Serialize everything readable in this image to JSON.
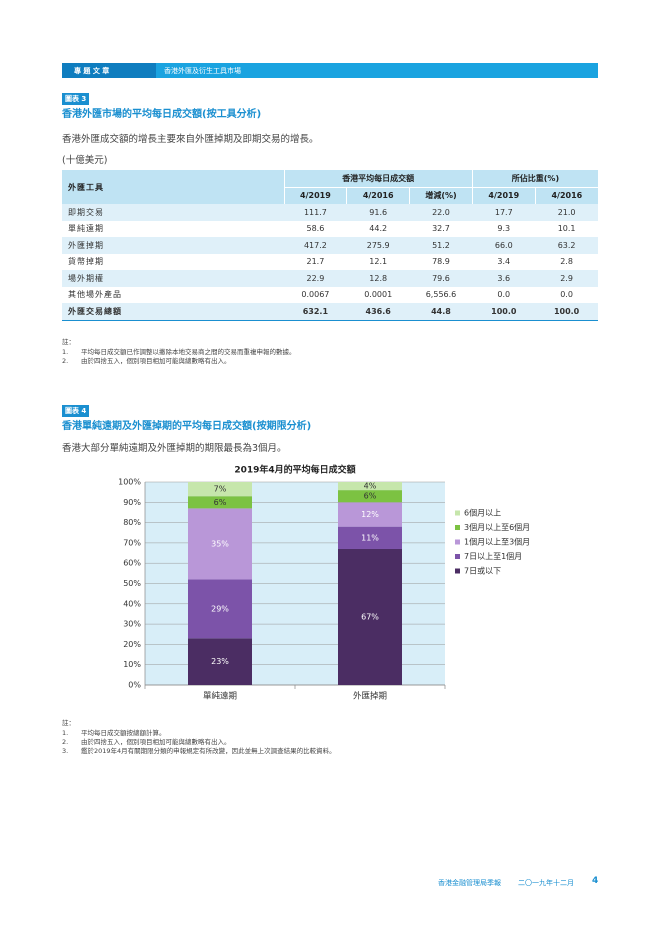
{
  "header": {
    "section": "專 題 文 章",
    "topic": "香港外匯及衍生工具市場"
  },
  "exhibit3": {
    "tag": "圖表 3",
    "title": "香港外匯市場的平均每日成交額(按工具分析)",
    "subtitle": "香港外匯成交額的增長主要來自外匯掉期及即期交易的增長。",
    "unit": "(十億美元)",
    "table": {
      "header_instrument": "外匯工具",
      "header_turnover": "香港平均每日成交額",
      "header_share": "所佔比重(%)",
      "subheaders": [
        "4/2019",
        "4/2016",
        "增減(%)",
        "4/2019",
        "4/2016"
      ],
      "rows": [
        [
          "即期交易",
          "111.7",
          "91.6",
          "22.0",
          "17.7",
          "21.0"
        ],
        [
          "單純遠期",
          "58.6",
          "44.2",
          "32.7",
          "9.3",
          "10.1"
        ],
        [
          "外匯掉期",
          "417.2",
          "275.9",
          "51.2",
          "66.0",
          "63.2"
        ],
        [
          "貨幣掉期",
          "21.7",
          "12.1",
          "78.9",
          "3.4",
          "2.8"
        ],
        [
          "場外期權",
          "22.9",
          "12.8",
          "79.6",
          "3.6",
          "2.9"
        ],
        [
          "其他場外產品",
          "0.0067",
          "0.0001",
          "6,556.6",
          "0.0",
          "0.0"
        ],
        [
          "外匯交易總額",
          "632.1",
          "436.6",
          "44.8",
          "100.0",
          "100.0"
        ]
      ]
    },
    "notes_label": "註：",
    "notes": [
      {
        "num": "1.",
        "text": "平均每日成交額已作調整以撇除本地交易商之間的交易而重複申報的數據。"
      },
      {
        "num": "2.",
        "text": "由於四捨五入，個別項目相加可能與總數略有出入。"
      }
    ]
  },
  "exhibit4": {
    "tag": "圖表 4",
    "title": "香港單純遠期及外匯掉期的平均每日成交額(按期限分析)",
    "subtitle": "香港大部分單純遠期及外匯掉期的期限最長為3個月。",
    "notes_label": "註：",
    "notes": [
      {
        "num": "1.",
        "text": "平均每日成交額按總額計算。"
      },
      {
        "num": "2.",
        "text": "由於四捨五入，個別項目相加可能與總數略有出入。"
      },
      {
        "num": "3.",
        "text": "鑑於2019年4月有關期限分類的申報規定有所改變，因此並無上次調查結果的比較資料。"
      }
    ]
  },
  "chart_data": {
    "type": "stacked_bar",
    "title": "2019年4月的平均每日成交額",
    "categories": [
      "單純遠期",
      "外匯掉期"
    ],
    "series": [
      {
        "name": "7日或以下",
        "color": "#4b2d63",
        "values": [
          23,
          67
        ],
        "value_labels": [
          "23%",
          "67%"
        ]
      },
      {
        "name": "7日以上至1個月",
        "color": "#7c53a9",
        "values": [
          29,
          11
        ],
        "value_labels": [
          "29%",
          "11%"
        ]
      },
      {
        "name": "1個月以上至3個月",
        "color": "#b997d8",
        "values": [
          35,
          12
        ],
        "value_labels": [
          "35%",
          "12%"
        ]
      },
      {
        "name": "3個月以上至6個月",
        "color": "#7cc242",
        "values": [
          6,
          6
        ],
        "value_labels": [
          "6%",
          "6%"
        ]
      },
      {
        "name": "6個月以上",
        "color": "#c6e6ab",
        "values": [
          7,
          4
        ],
        "value_labels": [
          "7%",
          "4%"
        ]
      }
    ],
    "ylim": [
      0,
      100
    ],
    "yticks": [
      {
        "value": 0,
        "label": "0%"
      },
      {
        "value": 10,
        "label": "10%"
      },
      {
        "value": 20,
        "label": "20%"
      },
      {
        "value": 30,
        "label": "30%"
      },
      {
        "value": 40,
        "label": "40%"
      },
      {
        "value": 50,
        "label": "50%"
      },
      {
        "value": 60,
        "label": "60%"
      },
      {
        "value": 70,
        "label": "70%"
      },
      {
        "value": 80,
        "label": "80%"
      },
      {
        "value": 90,
        "label": "90%"
      },
      {
        "value": 100,
        "label": "100%"
      }
    ],
    "grid": true,
    "legend": "right"
  },
  "footer": {
    "publication": "香港金融管理局季報",
    "date": "二〇一九年十二月",
    "page": "4"
  }
}
